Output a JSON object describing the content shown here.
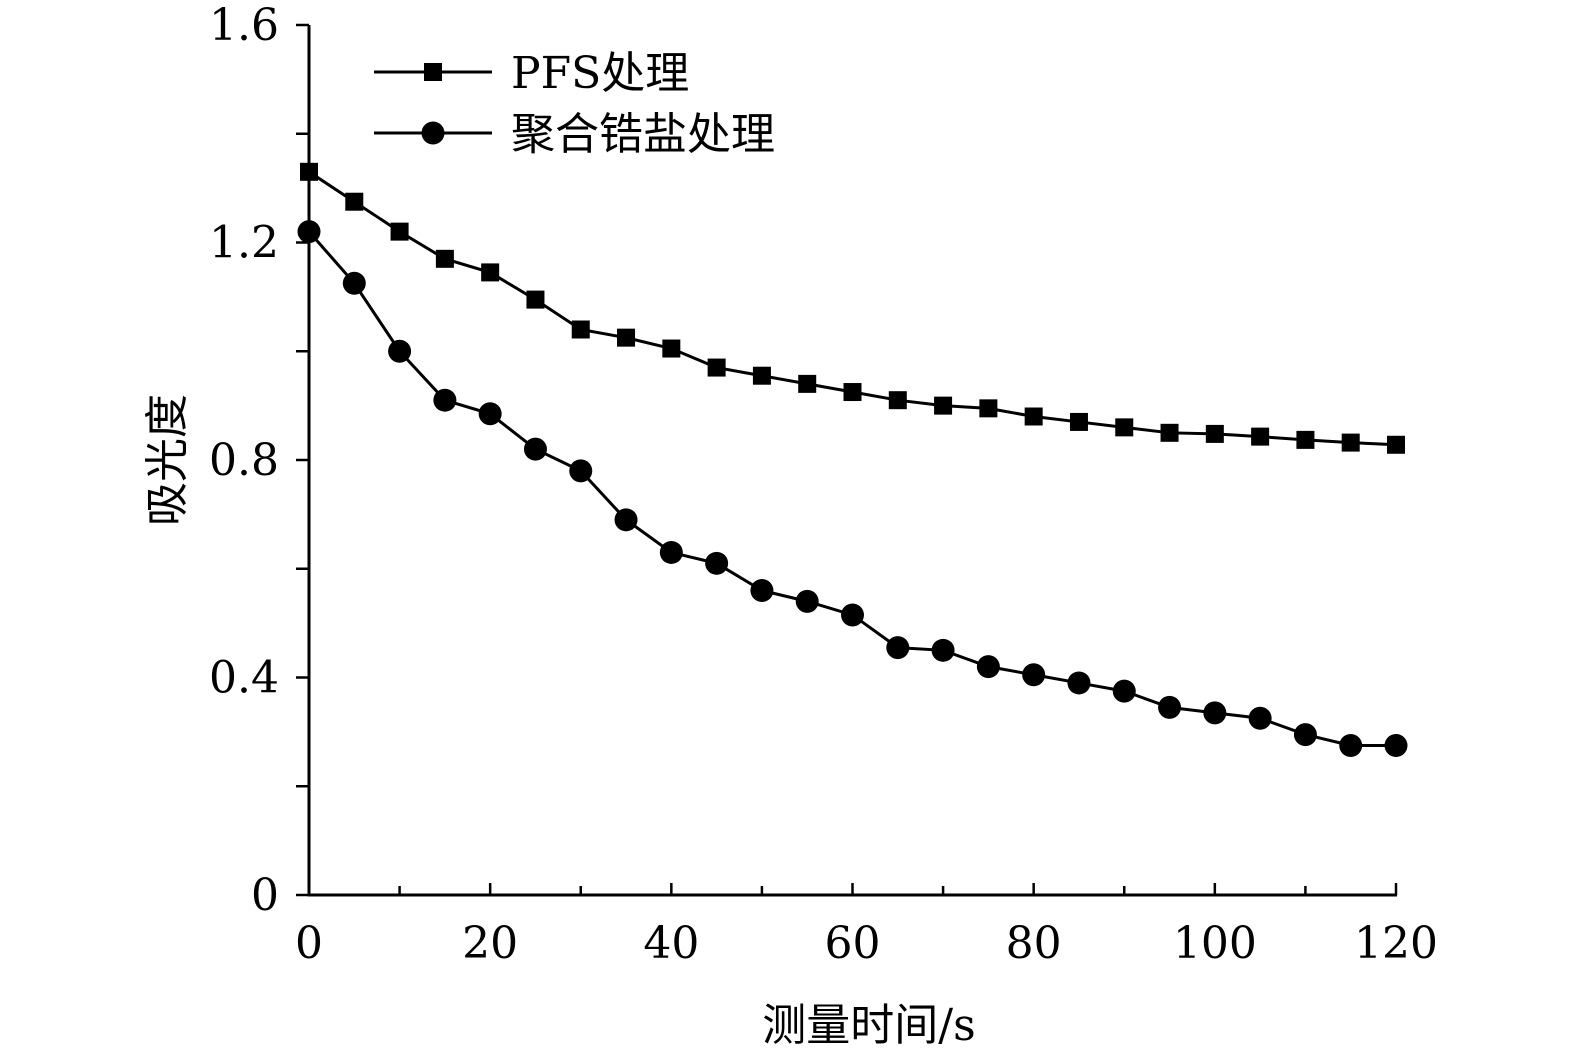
{
  "chart_data": {
    "type": "line",
    "title": "",
    "xlabel": "测量时间/s",
    "ylabel": "吸光度",
    "xlim": [
      0,
      120
    ],
    "ylim": [
      0,
      1.6
    ],
    "xticks": [
      0,
      20,
      40,
      60,
      80,
      100,
      120
    ],
    "xtick_labels": [
      "0",
      "20",
      "40",
      "60",
      "80",
      "100",
      "120"
    ],
    "yticks": [
      0,
      0.4,
      0.8,
      1.2,
      1.6
    ],
    "ytick_labels": [
      "0",
      "0.4",
      "0.8",
      "1.2",
      "1.6"
    ],
    "grid": false,
    "legend_position": "top-left",
    "x": [
      0,
      5,
      10,
      15,
      20,
      25,
      30,
      35,
      40,
      45,
      50,
      55,
      60,
      65,
      70,
      75,
      80,
      85,
      90,
      95,
      100,
      105,
      110,
      115,
      120
    ],
    "series": [
      {
        "name": "PFS处理",
        "marker": "square",
        "color": "#000000",
        "values": [
          1.33,
          1.275,
          1.22,
          1.17,
          1.145,
          1.095,
          1.04,
          1.025,
          1.005,
          0.97,
          0.955,
          0.94,
          0.925,
          0.91,
          0.9,
          0.895,
          0.88,
          0.87,
          0.86,
          0.85,
          0.848,
          0.843,
          0.837,
          0.832,
          0.828
        ]
      },
      {
        "name": "聚合锆盐处理",
        "marker": "circle",
        "color": "#000000",
        "values": [
          1.22,
          1.125,
          1.0,
          0.91,
          0.885,
          0.82,
          0.78,
          0.69,
          0.63,
          0.61,
          0.56,
          0.54,
          0.515,
          0.455,
          0.45,
          0.42,
          0.405,
          0.39,
          0.375,
          0.345,
          0.335,
          0.325,
          0.295,
          0.275,
          0.275
        ]
      }
    ]
  }
}
